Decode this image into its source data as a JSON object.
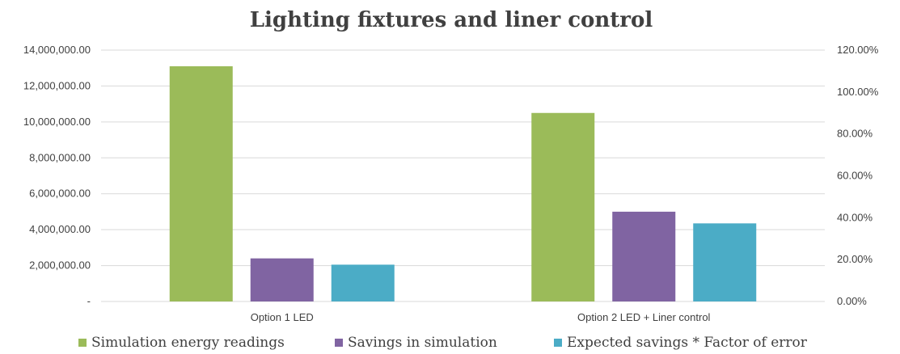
{
  "chart_data": {
    "type": "bar",
    "title": "Lighting fixtures and liner control",
    "categories": [
      "Option 1 LED",
      "Option 2 LED + Liner control"
    ],
    "series": [
      {
        "name": "Simulation energy readings",
        "color": "#9bbb59",
        "values": [
          13100000,
          10500000
        ]
      },
      {
        "name": "Savings in simulation",
        "color": "#8064a2",
        "values": [
          2400000,
          5000000
        ]
      },
      {
        "name": "Expected savings * Factor of error",
        "color": "#4bacc6",
        "values": [
          2050000,
          4350000
        ]
      }
    ],
    "ylim": [
      0,
      14000000
    ],
    "y_ticks": [
      "-",
      "2,000,000.00",
      "4,000,000.00",
      "6,000,000.00",
      "8,000,000.00",
      "10,000,000.00",
      "12,000,000.00",
      "14,000,000.00"
    ],
    "y2lim": [
      0,
      1.2
    ],
    "y2_ticks": [
      "0.00%",
      "20.00%",
      "40.00%",
      "60.00%",
      "80.00%",
      "100.00%",
      "120.00%"
    ],
    "grid": true,
    "legend_position": "bottom"
  }
}
